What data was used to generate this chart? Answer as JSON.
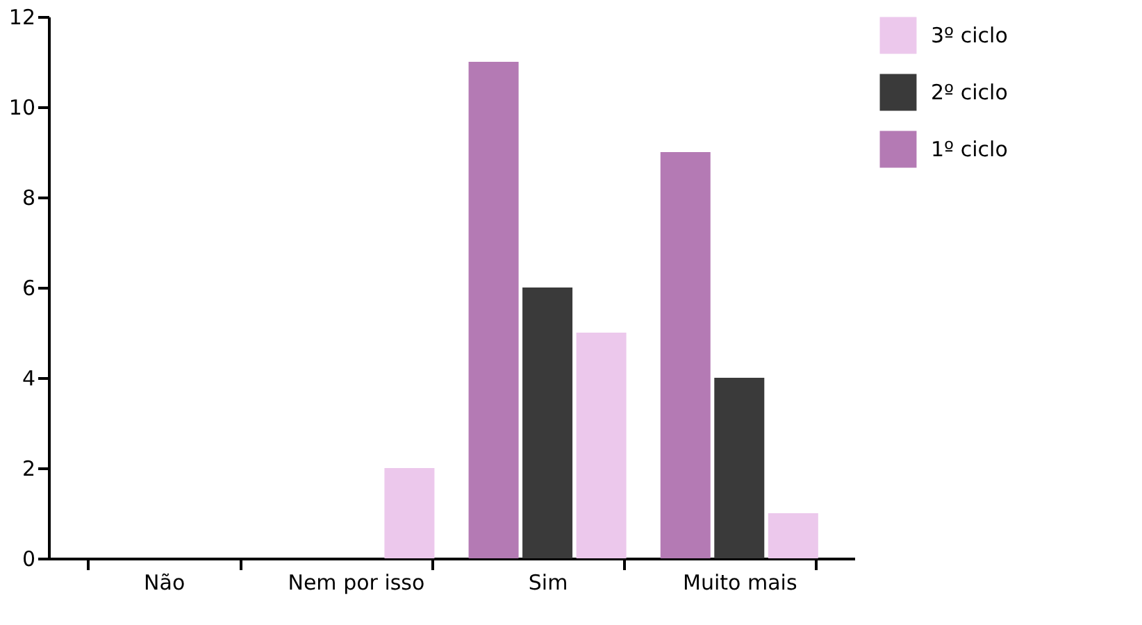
{
  "chart_data": {
    "type": "bar",
    "categories": [
      "Não",
      "Nem por isso",
      "Sim",
      "Muito mais"
    ],
    "series": [
      {
        "name": "1º ciclo",
        "color": "#b47ab4",
        "values": [
          0,
          0,
          11,
          9
        ]
      },
      {
        "name": "2º ciclo",
        "color": "#3a3a3a",
        "values": [
          0,
          0,
          6,
          4
        ]
      },
      {
        "name": "3º ciclo",
        "color": "#ecc8ec",
        "values": [
          0,
          2,
          5,
          1
        ]
      }
    ],
    "ylim": [
      0,
      12
    ],
    "yticks": [
      0,
      2,
      4,
      6,
      8,
      10,
      12
    ],
    "grid": false,
    "legend": "top right"
  }
}
